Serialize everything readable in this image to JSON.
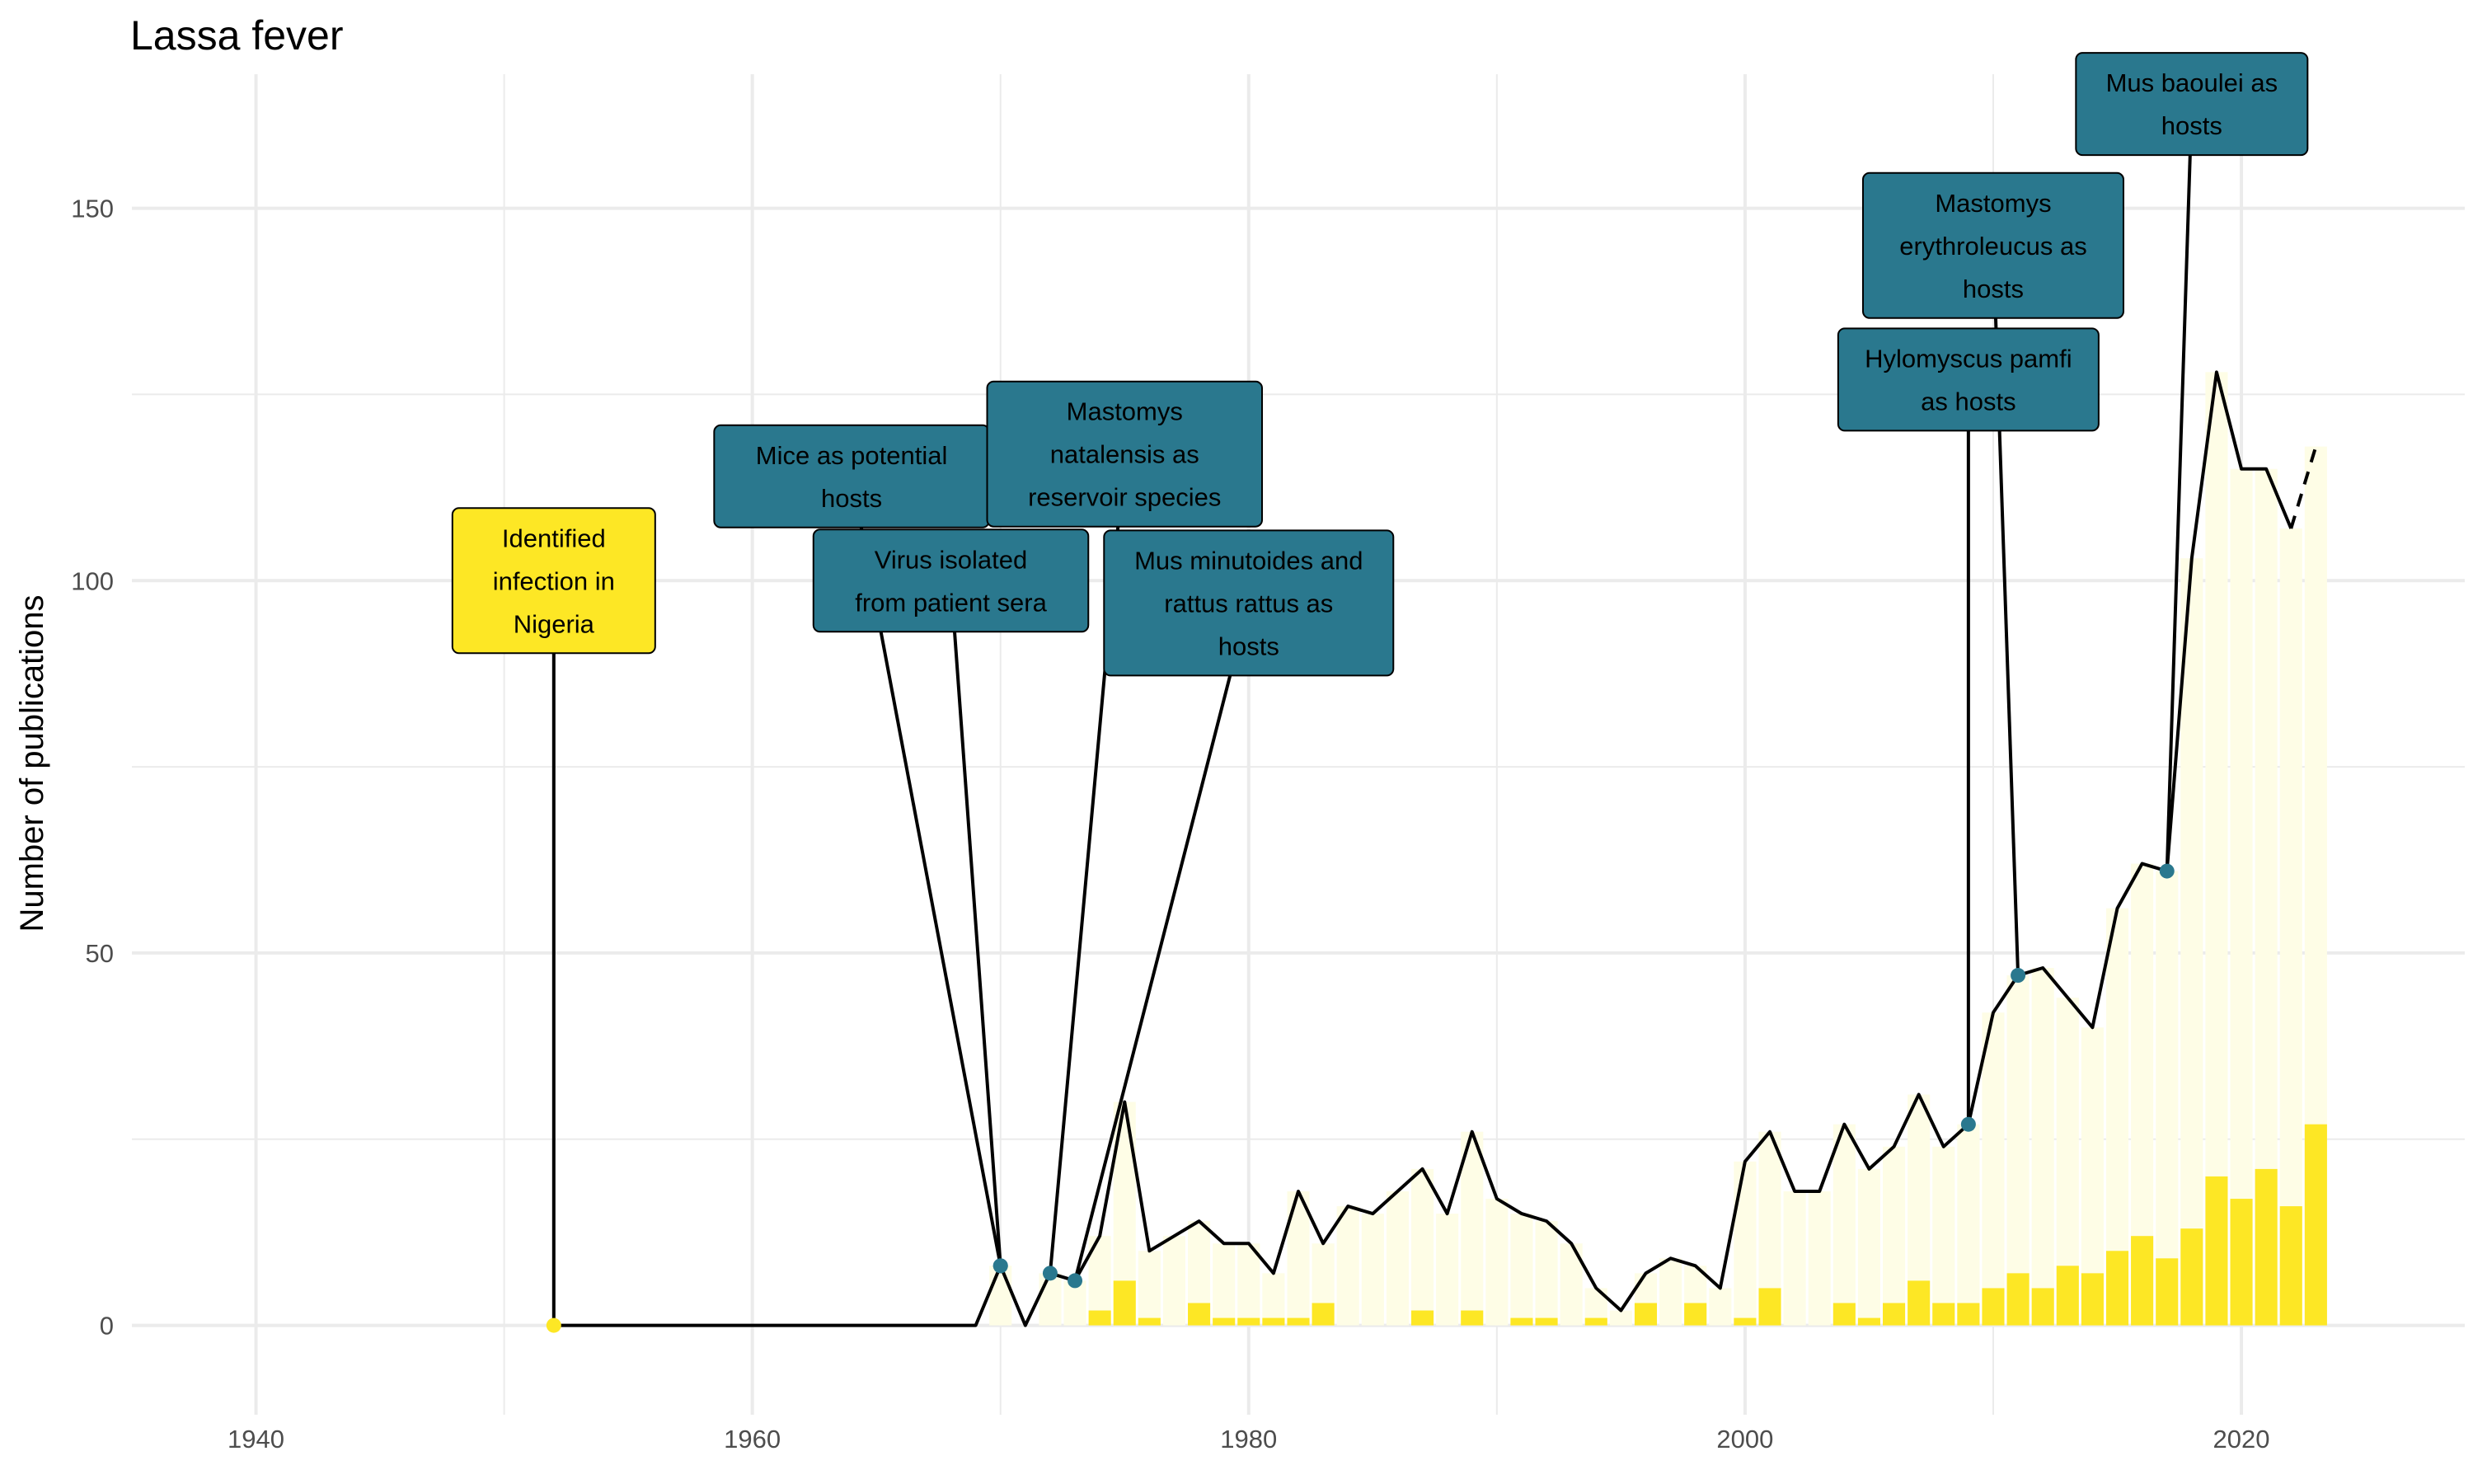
{
  "chart_data": {
    "type": "bar",
    "title": "Lassa fever",
    "xlabel": "",
    "ylabel": "Number of publications",
    "xlim": [
      1935,
      2029
    ],
    "ylim": [
      -12,
      168
    ],
    "x_ticks": [
      "1940",
      "1960",
      "1980",
      "2000",
      "2020"
    ],
    "y_ticks": [
      "0",
      "50",
      "100",
      "150"
    ],
    "grid": true,
    "legend": "none",
    "colors": {
      "bar": "#fde725",
      "bar_light": "#fefde6",
      "line": "#000000",
      "label_fill": "#2a788e",
      "first_label_fill": "#fde725",
      "grid": "#ebebeb"
    },
    "series": [
      {
        "kind": "bar",
        "x": [
          1974,
          1975,
          1976,
          1978,
          1979,
          1980,
          1981,
          1982,
          1983,
          1987,
          1989,
          1991,
          1992,
          1994,
          1996,
          1998,
          2000,
          2001,
          2004,
          2005,
          2006,
          2007,
          2008,
          2009,
          2010,
          2011,
          2012,
          2013,
          2014,
          2015,
          2016,
          2017,
          2018,
          2019,
          2020,
          2021,
          2022,
          2023
        ],
        "values": [
          2,
          6,
          1,
          3,
          1,
          1,
          1,
          1,
          3,
          2,
          2,
          1,
          1,
          1,
          3,
          3,
          1,
          5,
          3,
          1,
          3,
          6,
          3,
          3,
          5,
          7,
          5,
          8,
          7,
          10,
          12,
          9,
          13,
          20,
          17,
          21,
          16,
          27
        ]
      },
      {
        "kind": "bar-light",
        "x": [
          1970,
          1971,
          1972,
          1973,
          1974,
          1975,
          1976,
          1977,
          1978,
          1979,
          1980,
          1981,
          1982,
          1983,
          1984,
          1985,
          1986,
          1987,
          1988,
          1989,
          1990,
          1991,
          1992,
          1993,
          1994,
          1995,
          1996,
          1997,
          1998,
          1999,
          2000,
          2001,
          2002,
          2003,
          2004,
          2005,
          2006,
          2007,
          2008,
          2009,
          2010,
          2011,
          2012,
          2013,
          2014,
          2015,
          2016,
          2017,
          2018,
          2019,
          2020,
          2021,
          2022,
          2023
        ],
        "values": [
          8,
          0,
          7,
          6,
          12,
          30,
          10,
          12,
          14,
          11,
          11,
          7,
          18,
          11,
          16,
          15,
          18,
          21,
          15,
          26,
          17,
          15,
          14,
          11,
          5,
          2,
          7,
          9,
          8,
          5,
          22,
          26,
          18,
          18,
          27,
          21,
          24,
          31,
          24,
          27,
          42,
          47,
          48,
          44,
          40,
          56,
          62,
          61,
          103,
          128,
          115,
          115,
          107,
          118
        ]
      },
      {
        "kind": "line",
        "x": [
          1952,
          1969,
          1970,
          1971,
          1972,
          1973,
          1974,
          1975,
          1976,
          1977,
          1978,
          1979,
          1980,
          1981,
          1982,
          1983,
          1984,
          1985,
          1986,
          1987,
          1988,
          1989,
          1990,
          1991,
          1992,
          1993,
          1994,
          1995,
          1996,
          1997,
          1998,
          1999,
          2000,
          2001,
          2002,
          2003,
          2004,
          2005,
          2006,
          2007,
          2008,
          2009,
          2010,
          2011,
          2012,
          2013,
          2014,
          2015,
          2016,
          2017,
          2018,
          2019,
          2020,
          2021,
          2022
        ],
        "values": [
          0,
          0,
          8,
          0,
          7,
          6,
          12,
          30,
          10,
          12,
          14,
          11,
          11,
          7,
          18,
          11,
          16,
          15,
          18,
          21,
          15,
          26,
          17,
          15,
          14,
          11,
          5,
          2,
          7,
          9,
          8,
          5,
          22,
          26,
          18,
          18,
          27,
          21,
          24,
          31,
          24,
          27,
          42,
          47,
          48,
          44,
          40,
          56,
          62,
          61,
          103,
          128,
          115,
          115,
          107
        ]
      },
      {
        "kind": "dashed-line",
        "x": [
          2022,
          2023
        ],
        "values": [
          107,
          118
        ]
      }
    ],
    "annotations": [
      {
        "text": [
          "Identified",
          "infection in",
          "Nigeria"
        ],
        "x": 1952,
        "y": 0,
        "label_x": 1952,
        "label_y": 100,
        "fill": "#fde725"
      },
      {
        "text": [
          "Mice as potential",
          "hosts"
        ],
        "x": 1970,
        "y": 8,
        "label_x": 1964,
        "label_y": 114,
        "fill": "#2a788e"
      },
      {
        "text": [
          "Virus isolated",
          "from patient sera"
        ],
        "x": 1970,
        "y": 8,
        "label_x": 1968,
        "label_y": 100,
        "fill": "#2a788e"
      },
      {
        "text": [
          "Mastomys",
          "natalensis as",
          "reservoir species"
        ],
        "x": 1972,
        "y": 7,
        "label_x": 1975,
        "label_y": 117,
        "fill": "#2a788e"
      },
      {
        "text": [
          "Mus minutoides and",
          "rattus rattus as",
          "hosts"
        ],
        "x": 1973,
        "y": 6,
        "label_x": 1980,
        "label_y": 97,
        "fill": "#2a788e"
      },
      {
        "text": [
          "Hylomyscus pamfi",
          "as hosts"
        ],
        "x": 2009,
        "y": 27,
        "label_x": 2009,
        "label_y": 127,
        "fill": "#2a788e"
      },
      {
        "text": [
          "Mastomys",
          "erythroleucus as",
          "hosts"
        ],
        "x": 2011,
        "y": 47,
        "label_x": 2010,
        "label_y": 145,
        "fill": "#2a788e"
      },
      {
        "text": [
          "Mus baoulei as",
          "hosts"
        ],
        "x": 2017,
        "y": 61,
        "label_x": 2018,
        "label_y": 164,
        "fill": "#2a788e"
      }
    ]
  }
}
